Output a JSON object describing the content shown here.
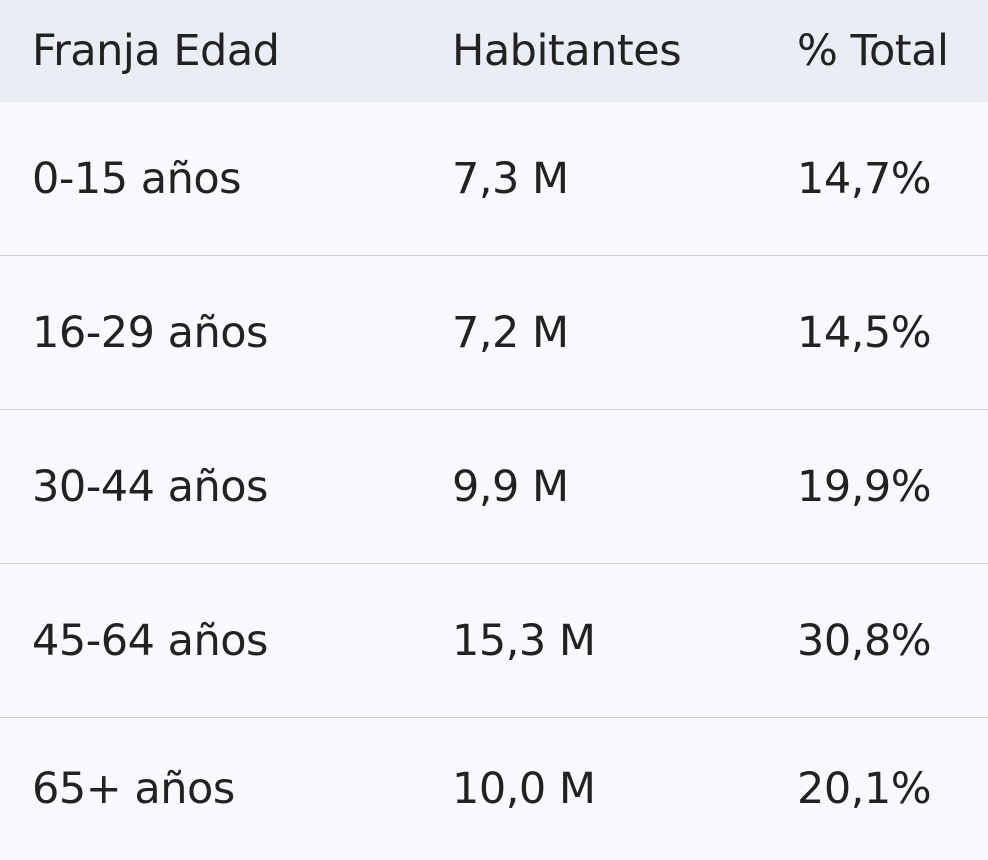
{
  "table": {
    "headers": [
      "Franja Edad",
      "Habitantes",
      "% Total"
    ],
    "rows": [
      [
        "0-15 años",
        "7,3 M",
        "14,7%"
      ],
      [
        "16-29 años",
        "7,2 M",
        "14,5%"
      ],
      [
        "30-44 años",
        "9,9 M",
        "19,9%"
      ],
      [
        "45-64 años",
        "15,3 M",
        "30,8%"
      ],
      [
        "65+ años",
        "10,0 M",
        "20,1%"
      ]
    ]
  }
}
